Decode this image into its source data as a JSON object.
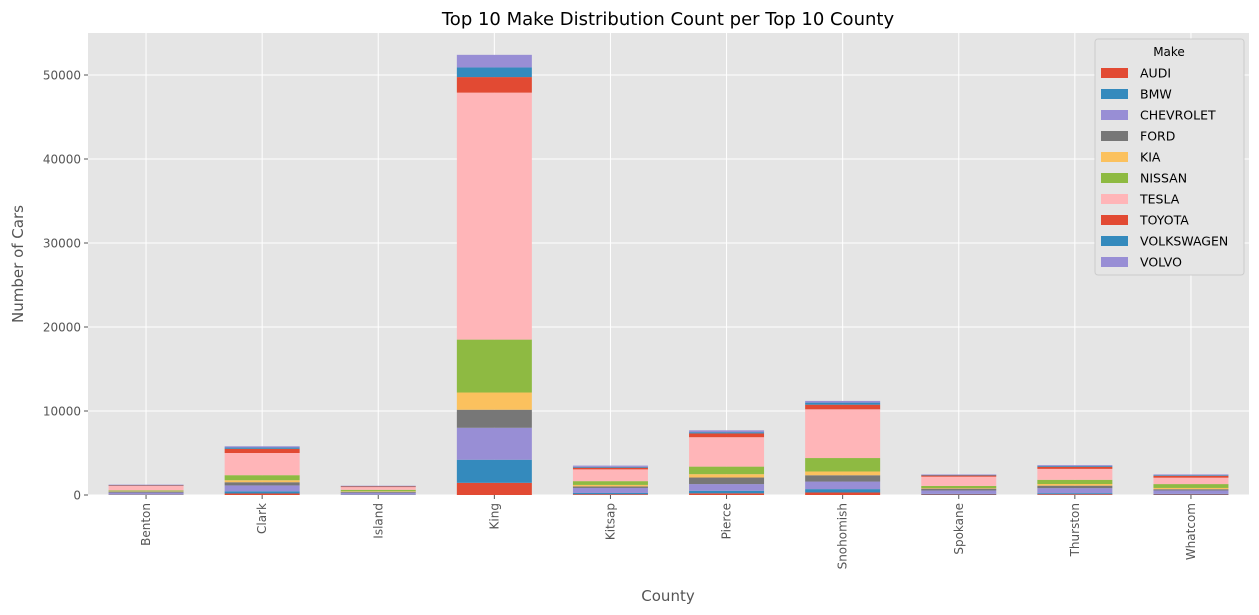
{
  "chart_data": {
    "type": "bar",
    "stacked": true,
    "title": "Top 10 Make Distribution Count per Top 10 County",
    "xlabel": "County",
    "ylabel": "Number of Cars",
    "categories": [
      "Benton",
      "Clark",
      "Island",
      "King",
      "Kitsap",
      "Pierce",
      "Snohomish",
      "Spokane",
      "Thurston",
      "Whatcom"
    ],
    "ylim": [
      0,
      55000
    ],
    "yticks": [
      0,
      10000,
      20000,
      30000,
      40000,
      50000
    ],
    "grid": true,
    "legend": {
      "title": "Make",
      "placement": "top-right"
    },
    "series": [
      {
        "name": "AUDI",
        "color": "#E24A33",
        "values": [
          40,
          180,
          30,
          1450,
          90,
          200,
          300,
          60,
          90,
          60
        ]
      },
      {
        "name": "BMW",
        "color": "#348ABD",
        "values": [
          50,
          260,
          40,
          2750,
          150,
          300,
          400,
          80,
          130,
          80
        ]
      },
      {
        "name": "CHEVROLET",
        "color": "#988ED5",
        "values": [
          200,
          700,
          200,
          3800,
          600,
          800,
          900,
          400,
          600,
          400
        ]
      },
      {
        "name": "FORD",
        "color": "#777777",
        "values": [
          110,
          380,
          110,
          2150,
          180,
          780,
          750,
          220,
          290,
          150
        ]
      },
      {
        "name": "KIA",
        "color": "#FBC15E",
        "values": [
          40,
          240,
          60,
          2050,
          180,
          400,
          450,
          70,
          200,
          150
        ]
      },
      {
        "name": "NISSAN",
        "color": "#8EBA42",
        "values": [
          110,
          600,
          180,
          6300,
          450,
          900,
          1600,
          250,
          500,
          460
        ]
      },
      {
        "name": "TESLA",
        "color": "#FFB5B8",
        "values": [
          530,
          2640,
          320,
          29400,
          1400,
          3500,
          5800,
          1100,
          1300,
          760
        ]
      },
      {
        "name": "TOYOTA",
        "color": "#E24A33",
        "values": [
          60,
          500,
          80,
          1850,
          200,
          450,
          550,
          150,
          250,
          230
        ]
      },
      {
        "name": "VOLKSWAGEN",
        "color": "#348ABD",
        "values": [
          40,
          150,
          40,
          1150,
          100,
          150,
          250,
          60,
          100,
          80
        ]
      },
      {
        "name": "VOLVO",
        "color": "#988ED5",
        "values": [
          50,
          150,
          40,
          1500,
          150,
          220,
          200,
          60,
          100,
          80
        ]
      }
    ]
  }
}
